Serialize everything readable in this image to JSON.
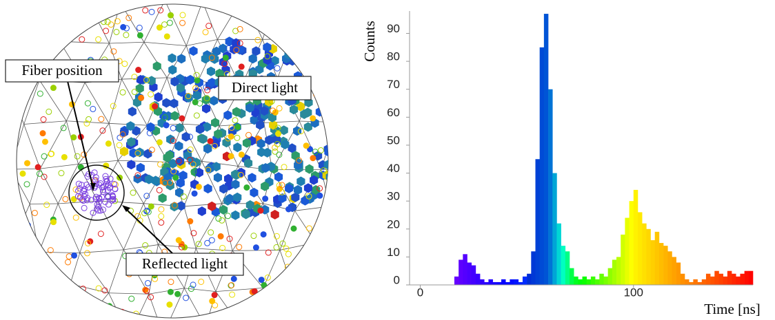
{
  "sphere": {
    "annotations": [
      "Fiber position",
      "Direct light",
      "Reflected light"
    ]
  },
  "chart_data": {
    "type": "histogram",
    "xlabel": "Time [ns]",
    "ylabel": "Counts",
    "bins": [
      16,
      18,
      20,
      22,
      24,
      26,
      28,
      30,
      32,
      34,
      36,
      38,
      40,
      42,
      44,
      46,
      48,
      50,
      52,
      54,
      56,
      58,
      60,
      62,
      64,
      66,
      68,
      70,
      72,
      74,
      76,
      78,
      80,
      82,
      84,
      86,
      88,
      90,
      92,
      94,
      96,
      98,
      100,
      102,
      104,
      106,
      108,
      110,
      112,
      114,
      116,
      118,
      120,
      122,
      124,
      126,
      128,
      130,
      132,
      134,
      136,
      138,
      140,
      142,
      144,
      146,
      148,
      150,
      152,
      154,
      156
    ],
    "values": [
      3,
      9,
      11,
      8,
      7,
      4,
      2,
      1,
      2,
      1,
      1,
      2,
      1,
      2,
      2,
      1,
      3,
      4,
      12,
      45,
      85,
      97,
      70,
      40,
      22,
      14,
      12,
      6,
      3,
      2,
      3,
      2,
      3,
      2,
      4,
      3,
      6,
      9,
      10,
      18,
      24,
      30,
      34,
      26,
      22,
      20,
      16,
      19,
      15,
      14,
      12,
      10,
      8,
      4,
      2,
      1,
      2,
      1,
      2,
      4,
      3,
      5,
      4,
      3,
      5,
      4,
      3,
      4,
      5,
      5
    ],
    "colormap": "rainbow",
    "xlim": [
      -5,
      156
    ],
    "ylim": [
      0,
      98
    ],
    "xticks": [
      0,
      100
    ],
    "yticks": [
      0,
      10,
      20,
      30,
      40,
      50,
      60,
      70,
      80,
      90
    ]
  }
}
